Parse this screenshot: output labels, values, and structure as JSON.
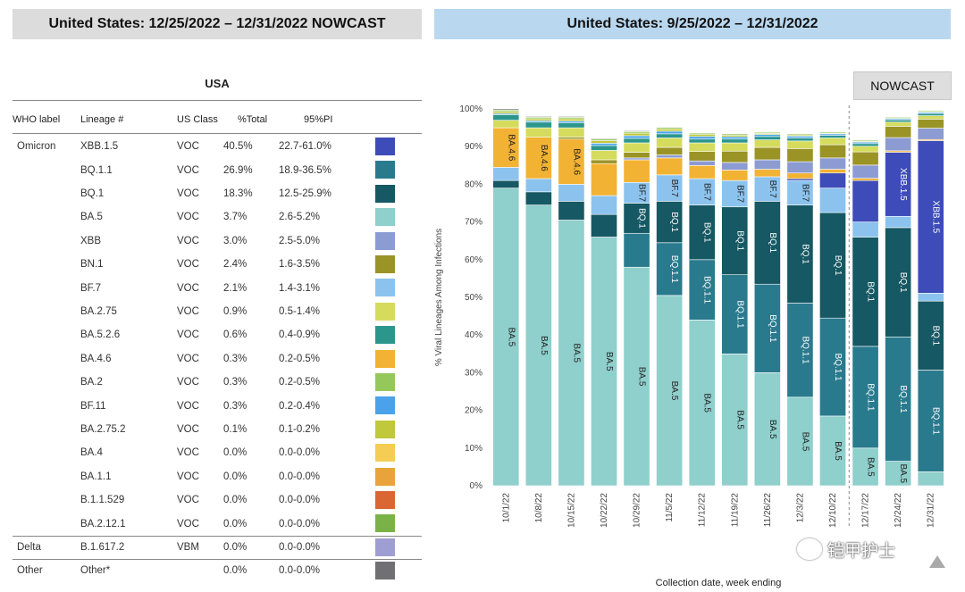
{
  "left_title": "United States: 12/25/2022 – 12/31/2022 NOWCAST",
  "right_title": "United States: 9/25/2022 – 12/31/2022",
  "table": {
    "title": "USA",
    "headers": [
      "WHO label",
      "Lineage #",
      "US Class",
      "%Total",
      "95%PI"
    ],
    "rows": [
      {
        "who": "Omicron",
        "lineage": "XBB.1.5",
        "class": "VOC",
        "pct": "40.5%",
        "pi": "22.7-61.0%",
        "color": "#3d4cb8"
      },
      {
        "who": "",
        "lineage": "BQ.1.1",
        "class": "VOC",
        "pct": "26.9%",
        "pi": "18.9-36.5%",
        "color": "#2a7a8e"
      },
      {
        "who": "",
        "lineage": "BQ.1",
        "class": "VOC",
        "pct": "18.3%",
        "pi": "12.5-25.9%",
        "color": "#165863"
      },
      {
        "who": "",
        "lineage": "BA.5",
        "class": "VOC",
        "pct": "3.7%",
        "pi": "2.6-5.2%",
        "color": "#8fcfcc"
      },
      {
        "who": "",
        "lineage": "XBB",
        "class": "VOC",
        "pct": "3.0%",
        "pi": "2.5-5.0%",
        "color": "#8c9bd2"
      },
      {
        "who": "",
        "lineage": "BN.1",
        "class": "VOC",
        "pct": "2.4%",
        "pi": "1.6-3.5%",
        "color": "#9a9326"
      },
      {
        "who": "",
        "lineage": "BF.7",
        "class": "VOC",
        "pct": "2.1%",
        "pi": "1.4-3.1%",
        "color": "#8cc3ee"
      },
      {
        "who": "",
        "lineage": "BA.2.75",
        "class": "VOC",
        "pct": "0.9%",
        "pi": "0.5-1.4%",
        "color": "#d5dc5d"
      },
      {
        "who": "",
        "lineage": "BA.5.2.6",
        "class": "VOC",
        "pct": "0.6%",
        "pi": "0.4-0.9%",
        "color": "#2b968c"
      },
      {
        "who": "",
        "lineage": "BA.4.6",
        "class": "VOC",
        "pct": "0.3%",
        "pi": "0.2-0.5%",
        "color": "#f2b233"
      },
      {
        "who": "",
        "lineage": "BA.2",
        "class": "VOC",
        "pct": "0.3%",
        "pi": "0.2-0.5%",
        "color": "#95c85a"
      },
      {
        "who": "",
        "lineage": "BF.11",
        "class": "VOC",
        "pct": "0.3%",
        "pi": "0.2-0.4%",
        "color": "#4aa3ea"
      },
      {
        "who": "",
        "lineage": "BA.2.75.2",
        "class": "VOC",
        "pct": "0.1%",
        "pi": "0.1-0.2%",
        "color": "#c0c83c"
      },
      {
        "who": "",
        "lineage": "BA.4",
        "class": "VOC",
        "pct": "0.0%",
        "pi": "0.0-0.0%",
        "color": "#f5cd55"
      },
      {
        "who": "",
        "lineage": "BA.1.1",
        "class": "VOC",
        "pct": "0.0%",
        "pi": "0.0-0.0%",
        "color": "#e8a43a"
      },
      {
        "who": "",
        "lineage": "B.1.1.529",
        "class": "VOC",
        "pct": "0.0%",
        "pi": "0.0-0.0%",
        "color": "#d96633"
      },
      {
        "who": "",
        "lineage": "BA.2.12.1",
        "class": "VOC",
        "pct": "0.0%",
        "pi": "0.0-0.0%",
        "color": "#7bb247"
      },
      {
        "who": "Delta",
        "lineage": "B.1.617.2",
        "class": "VBM",
        "pct": "0.0%",
        "pi": "0.0-0.0%",
        "color": "#9f9ed2"
      },
      {
        "who": "Other",
        "lineage": "Other*",
        "class": "",
        "pct": "0.0%",
        "pi": "0.0-0.0%",
        "color": "#6f6f74"
      }
    ]
  },
  "nowcast_label": "NOWCAST",
  "chart_data": {
    "type": "bar",
    "stacked": true,
    "ylabel": "% Viral Lineages Among Infections",
    "xlabel": "Collection date, week ending",
    "ylim": [
      0,
      100
    ],
    "yticks": [
      "0%",
      "10%",
      "20%",
      "30%",
      "40%",
      "50%",
      "60%",
      "70%",
      "80%",
      "90%",
      "100%"
    ],
    "categories": [
      "10/1/22",
      "10/8/22",
      "10/15/22",
      "10/22/22",
      "10/29/22",
      "11/5/22",
      "11/12/22",
      "11/19/22",
      "11/26/22",
      "12/3/22",
      "12/10/22",
      "12/17/22",
      "12/24/22",
      "12/31/22"
    ],
    "nowcast_from_index": 11,
    "series": [
      {
        "name": "BA.5",
        "color": "#8fcfcc",
        "values": [
          79,
          74.5,
          70.5,
          66,
          58,
          50.5,
          44,
          35,
          30,
          23.5,
          18.5,
          10,
          6.5,
          3.7
        ]
      },
      {
        "name": "BQ.1.1",
        "color": "#2a7a8e",
        "values": [
          0,
          0,
          0,
          0,
          9,
          14,
          16,
          21,
          23.5,
          25,
          26,
          27,
          33,
          27
        ]
      },
      {
        "name": "BQ.1",
        "color": "#165863",
        "values": [
          2,
          3.5,
          5,
          6,
          8,
          11,
          14.5,
          18,
          22,
          26,
          28,
          29,
          29,
          18.3
        ]
      },
      {
        "name": "BF.7",
        "color": "#8cc3ee",
        "values": [
          3.5,
          3.5,
          4.5,
          5,
          5.5,
          7,
          7,
          7,
          6.5,
          6.5,
          6.5,
          4,
          3,
          2.1
        ]
      },
      {
        "name": "XBB.1.5",
        "color": "#3d4cb8",
        "values": [
          0,
          0,
          0,
          0,
          0,
          0,
          0,
          0,
          0,
          0.5,
          4,
          11,
          17,
          40.5
        ]
      },
      {
        "name": "BA.4.6",
        "color": "#f2b233",
        "values": [
          10.5,
          11,
          12,
          8.5,
          6,
          4.5,
          3.5,
          2.8,
          2,
          1.5,
          1,
          0.6,
          0.4,
          0.3
        ]
      },
      {
        "name": "XBB",
        "color": "#8c9bd2",
        "values": [
          0,
          0,
          0,
          0,
          0.5,
          0.8,
          1.2,
          2,
          2.5,
          3,
          3,
          3.5,
          3.5,
          3
        ]
      },
      {
        "name": "BN.1",
        "color": "#9a9326",
        "values": [
          0,
          0,
          0.5,
          1,
          1.5,
          2,
          2.5,
          3,
          3.3,
          3.5,
          3.5,
          3.5,
          3,
          2.4
        ]
      },
      {
        "name": "BA.2.75",
        "color": "#d5dc5d",
        "values": [
          2,
          2.5,
          2.5,
          2.5,
          2.5,
          2.5,
          2.3,
          2.2,
          2,
          2,
          1.8,
          1.5,
          1.1,
          0.9
        ]
      },
      {
        "name": "BA.5.2.6",
        "color": "#2b968c",
        "values": [
          1.5,
          1.5,
          1.3,
          1.3,
          1.2,
          1.1,
          1,
          1,
          0.9,
          0.8,
          0.7,
          0.7,
          0.6,
          0.6
        ]
      },
      {
        "name": "BF.11",
        "color": "#4aa3ea",
        "values": [
          0.3,
          0.4,
          0.5,
          0.6,
          0.7,
          0.7,
          0.7,
          0.6,
          0.5,
          0.5,
          0.4,
          0.4,
          0.3,
          0.3
        ]
      },
      {
        "name": "BA.2.75.2",
        "color": "#c0c83c",
        "values": [
          0.5,
          0.5,
          0.6,
          0.7,
          0.7,
          0.6,
          0.5,
          0.4,
          0.3,
          0.3,
          0.2,
          0.2,
          0.1,
          0.1
        ]
      },
      {
        "name": "BA.2",
        "color": "#95c85a",
        "values": [
          0.4,
          0.4,
          0.4,
          0.4,
          0.4,
          0.4,
          0.4,
          0.4,
          0.3,
          0.3,
          0.3,
          0.3,
          0.3,
          0.3
        ]
      },
      {
        "name": "Other",
        "color": "#6f6f74",
        "values": [
          0.3,
          0.2,
          0.2,
          0.2,
          0.2,
          0.1,
          0.1,
          0.1,
          0.1,
          0.1,
          0.1,
          0.1,
          0.1,
          0.0
        ]
      }
    ],
    "bar_labels": [
      {
        "series": "BA.5",
        "bars": [
          0,
          1,
          2,
          3,
          4,
          5,
          6,
          7,
          8,
          9,
          10,
          11,
          12
        ],
        "text": "BA.5"
      },
      {
        "series": "BA.4.6",
        "bars": [
          0,
          1,
          2
        ],
        "text": "BA.4.6"
      },
      {
        "series": "BF.7",
        "bars": [
          4,
          5,
          6,
          7,
          8,
          9
        ],
        "text": "BF.7"
      },
      {
        "series": "BQ.1.1",
        "bars": [
          5,
          6,
          7,
          8,
          9,
          10,
          11,
          12,
          13
        ],
        "text": "BQ.1.1"
      },
      {
        "series": "BQ.1",
        "bars": [
          4,
          5,
          6,
          7,
          8,
          9,
          10,
          11,
          12,
          13
        ],
        "text": "BQ.1"
      },
      {
        "series": "XBB.1.5",
        "bars": [
          12,
          13
        ],
        "text": "XBB.1.5"
      }
    ]
  },
  "watermark": "铠甲护士"
}
